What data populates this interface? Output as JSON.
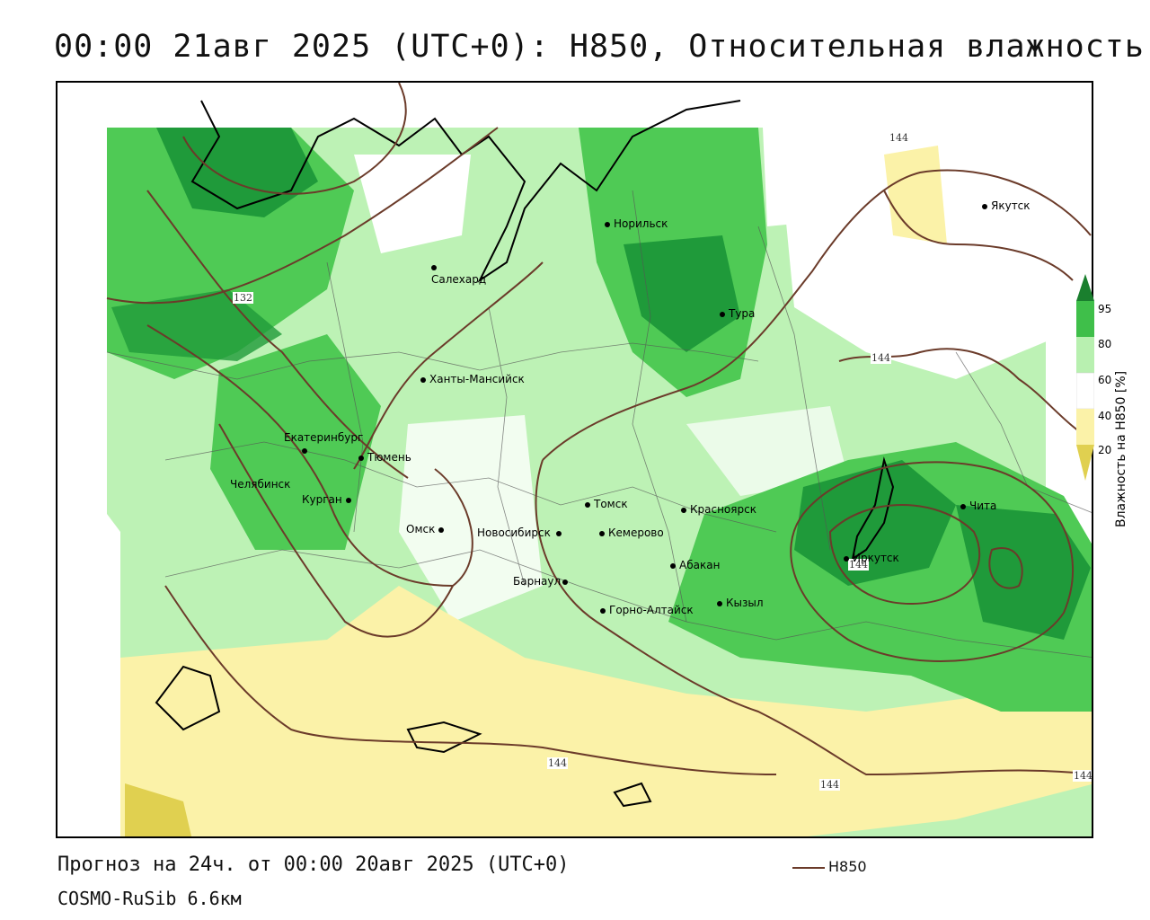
{
  "title": "00:00 21авг 2025 (UTC+0): H850, Относительная влажность",
  "footer": {
    "forecast": "Прогноз на 24ч. от 00:00 20авг 2025 (UTC+0)",
    "model": "COSMO-RuSib 6.6км",
    "key_label": "H850"
  },
  "legend": {
    "title": "Влажность на H850 [%]",
    "ticks": [
      "95",
      "80",
      "60",
      "40",
      "20"
    ],
    "colors": [
      "#1a7f2e",
      "#3fbf4a",
      "#b8f0b0",
      "#ffffff",
      "#fbf2a8",
      "#e0d050"
    ]
  },
  "contour_labels": [
    "132",
    "144",
    "144",
    "144",
    "144",
    "144",
    "144"
  ],
  "cities": [
    {
      "name": "Норильск"
    },
    {
      "name": "Салехард"
    },
    {
      "name": "Тура"
    },
    {
      "name": "Якутск"
    },
    {
      "name": "Ханты-Мансийск"
    },
    {
      "name": "Екатеринбург"
    },
    {
      "name": "Тюмень"
    },
    {
      "name": "Челябинск"
    },
    {
      "name": "Курган"
    },
    {
      "name": "Омск"
    },
    {
      "name": "Томск"
    },
    {
      "name": "Новосибирск"
    },
    {
      "name": "Кемерово"
    },
    {
      "name": "Красноярск"
    },
    {
      "name": "Барнаул"
    },
    {
      "name": "Абакан"
    },
    {
      "name": "Горно-Алтайск"
    },
    {
      "name": "Кызыл"
    },
    {
      "name": "Иркутск"
    },
    {
      "name": "Чита"
    }
  ],
  "colors": {
    "contour": "#6b3b2a",
    "dark_green": "#1f9a3a",
    "mid_green": "#4fca55",
    "light_green": "#bdf2b5",
    "yellow": "#fbf2a8"
  }
}
